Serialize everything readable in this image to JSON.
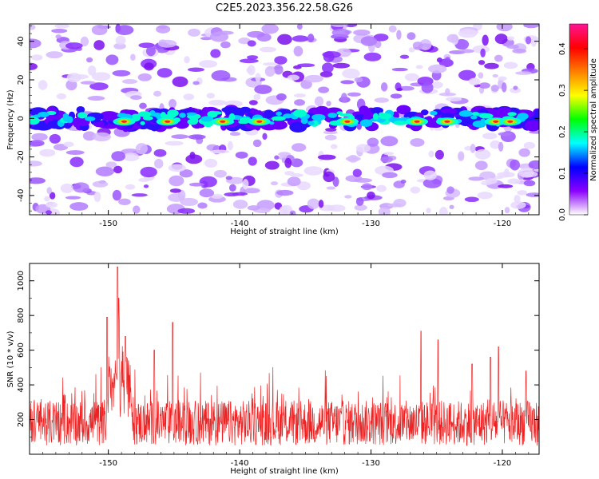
{
  "title": "C2E5.2023.356.22.58.G26",
  "spectrogram": {
    "ylabel": "Frequency (Hz)",
    "xlabel": "Height of straight line (km)",
    "xlim": [
      -156,
      -117.2
    ],
    "ylim": [
      -50,
      49
    ],
    "xticks": [
      -150,
      -140,
      -130,
      -120
    ],
    "yticks": [
      -40,
      -20,
      0,
      20,
      40
    ],
    "colorbar": {
      "label": "Normalized spectral amplitude",
      "range": [
        0.0,
        0.46
      ],
      "ticks": [
        0.0,
        0.1,
        0.2,
        0.3,
        0.4
      ],
      "colormap": [
        "#ffffff",
        "#8b00ff",
        "#0000ff",
        "#00ffff",
        "#00ff00",
        "#ffff00",
        "#ff7f00",
        "#ff0000",
        "#ff1493"
      ]
    },
    "signal_band": {
      "center_freq_hz": [
        -3,
        3
      ],
      "strong_centers_km": [
        -148.8,
        -145.5,
        -141.3,
        -138.5,
        -131.8,
        -126.5,
        -124.2,
        -120.5,
        -119.4
      ]
    }
  },
  "snr_panel": {
    "ylabel": "SNR (10 * v/v)",
    "xlabel": "Height of straight line (km)",
    "xlim": [
      -156,
      -117.2
    ],
    "ylim": [
      0,
      1100
    ],
    "xticks": [
      -150,
      -140,
      -130,
      -120
    ],
    "yticks": [
      200,
      400,
      600,
      800,
      1000
    ],
    "line_color": "#ee2222",
    "baseline": 180,
    "peaks": [
      {
        "x": -149.3,
        "y": 1080
      },
      {
        "x": -149.2,
        "y": 900
      },
      {
        "x": -150.1,
        "y": 790
      },
      {
        "x": -148.7,
        "y": 680
      },
      {
        "x": -145.1,
        "y": 760
      },
      {
        "x": -146.5,
        "y": 600
      },
      {
        "x": -126.2,
        "y": 710
      },
      {
        "x": -124.9,
        "y": 660
      },
      {
        "x": -120.3,
        "y": 620
      },
      {
        "x": -120.9,
        "y": 560
      },
      {
        "x": -122.3,
        "y": 520
      },
      {
        "x": -118.2,
        "y": 480
      }
    ]
  },
  "chart_data": [
    {
      "type": "heatmap",
      "title": "C2E5.2023.356.22.58.G26",
      "xlabel": "Height of straight line (km)",
      "ylabel": "Frequency (Hz)",
      "xlim": [
        -156,
        -117.2
      ],
      "ylim": [
        -50,
        49
      ],
      "zlabel": "Normalized spectral amplitude",
      "zlim": [
        0.0,
        0.46
      ],
      "description_values": {
        "signal_frequency_hz": [
          -3,
          3
        ],
        "peak_amplitude": 0.46
      }
    },
    {
      "type": "line",
      "xlabel": "Height of straight line (km)",
      "ylabel": "SNR (10 * v/v)",
      "xlim": [
        -156,
        -117.2
      ],
      "ylim": [
        0,
        1100
      ],
      "peak": {
        "x": -149.3,
        "y": 1080
      },
      "typical_range": [
        60,
        350
      ]
    }
  ]
}
